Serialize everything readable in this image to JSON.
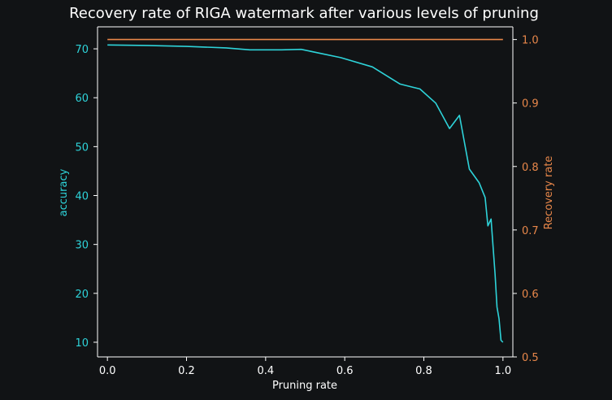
{
  "chart_data": {
    "type": "line",
    "title": "Recovery rate of RIGA watermark after various levels of pruning",
    "xlabel": "Pruning rate",
    "ylabel_left": "accuracy",
    "ylabel_right": "Recovery rate",
    "xlim": [
      -0.025,
      1.025
    ],
    "ylim_left": [
      7,
      74.5
    ],
    "ylim_right": [
      0.5,
      1.02
    ],
    "x_ticks": [
      0.0,
      0.2,
      0.4,
      0.6,
      0.8,
      1.0
    ],
    "x_tick_labels": [
      "0.0",
      "0.2",
      "0.4",
      "0.6",
      "0.8",
      "1.0"
    ],
    "y_left_ticks": [
      10,
      20,
      30,
      40,
      50,
      60,
      70
    ],
    "y_left_tick_labels": [
      "10",
      "20",
      "30",
      "40",
      "50",
      "60",
      "70"
    ],
    "y_right_ticks": [
      0.5,
      0.6,
      0.7,
      0.8,
      0.9,
      1.0
    ],
    "y_right_tick_labels": [
      "0.5",
      "0.6",
      "0.7",
      "0.8",
      "0.9",
      "1.0"
    ],
    "colors": {
      "background": "#111315",
      "foreground": "#ffffff",
      "accuracy": "#2ed3d9",
      "recovery": "#e8874a"
    },
    "series": [
      {
        "axis": "left",
        "color": "#2ed3d9",
        "x": [
          0.0,
          0.1,
          0.2,
          0.3,
          0.36,
          0.44,
          0.49,
          0.59,
          0.67,
          0.74,
          0.79,
          0.83,
          0.865,
          0.89,
          0.915,
          0.94,
          0.955,
          0.962,
          0.97,
          0.98,
          0.985,
          0.99,
          0.995,
          1.0
        ],
        "y": [
          70.8,
          70.7,
          70.5,
          70.2,
          69.8,
          69.8,
          69.9,
          68.2,
          66.3,
          62.8,
          61.8,
          58.9,
          53.7,
          56.4,
          45.4,
          42.6,
          39.6,
          33.8,
          35.2,
          24,
          17.2,
          14.8,
          10.4,
          10
        ]
      },
      {
        "axis": "right",
        "color": "#e8874a",
        "x": [
          0.0,
          0.2,
          0.4,
          0.6,
          0.8,
          1.0
        ],
        "y": [
          1.0,
          1.0,
          1.0,
          1.0,
          1.0,
          1.0
        ]
      }
    ]
  }
}
